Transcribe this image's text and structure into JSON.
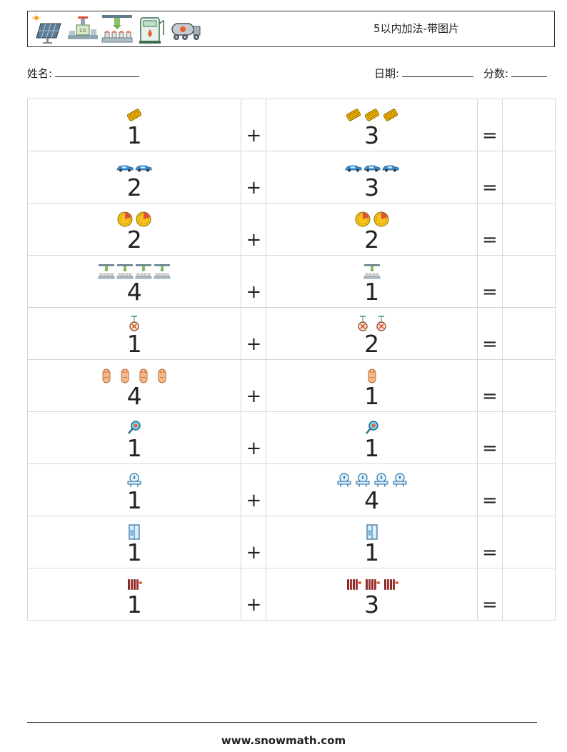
{
  "header": {
    "title": "5以内加法-带图片",
    "icons": [
      "solar-panel-icon",
      "co2-pipeline-icon",
      "bottling-machine-icon",
      "gas-pump-icon",
      "tanker-truck-icon"
    ]
  },
  "fields": {
    "name_label": "姓名:",
    "date_label": "日期:",
    "score_label": "分数:"
  },
  "problems": [
    {
      "a": "1",
      "a_icon": "ticket-icon",
      "op": "+",
      "b": "3",
      "b_icon": "ticket-icon",
      "eq": "="
    },
    {
      "a": "2",
      "a_icon": "car-icon",
      "op": "+",
      "b": "3",
      "b_icon": "car-icon",
      "eq": "="
    },
    {
      "a": "2",
      "a_icon": "pie-gauge-icon",
      "op": "+",
      "b": "2",
      "b_icon": "pie-gauge-icon",
      "eq": "="
    },
    {
      "a": "4",
      "a_icon": "bottling-machine-icon",
      "op": "+",
      "b": "1",
      "b_icon": "bottling-machine-icon",
      "eq": "="
    },
    {
      "a": "1",
      "a_icon": "hanging-ornament-icon",
      "op": "+",
      "b": "2",
      "b_icon": "hanging-ornament-icon",
      "eq": "="
    },
    {
      "a": "4",
      "a_icon": "sausage-icon",
      "op": "+",
      "b": "1",
      "b_icon": "sausage-icon",
      "eq": "="
    },
    {
      "a": "1",
      "a_icon": "magnifier-icon",
      "op": "+",
      "b": "1",
      "b_icon": "magnifier-icon",
      "eq": "="
    },
    {
      "a": "1",
      "a_icon": "water-heater-icon",
      "op": "+",
      "b": "4",
      "b_icon": "water-heater-icon",
      "eq": "="
    },
    {
      "a": "1",
      "a_icon": "shower-door-icon",
      "op": "+",
      "b": "1",
      "b_icon": "shower-door-icon",
      "eq": "="
    },
    {
      "a": "1",
      "a_icon": "radiator-icon",
      "op": "+",
      "b": "3",
      "b_icon": "radiator-icon",
      "eq": "="
    }
  ],
  "footer": {
    "url": "www.snowmath.com"
  }
}
